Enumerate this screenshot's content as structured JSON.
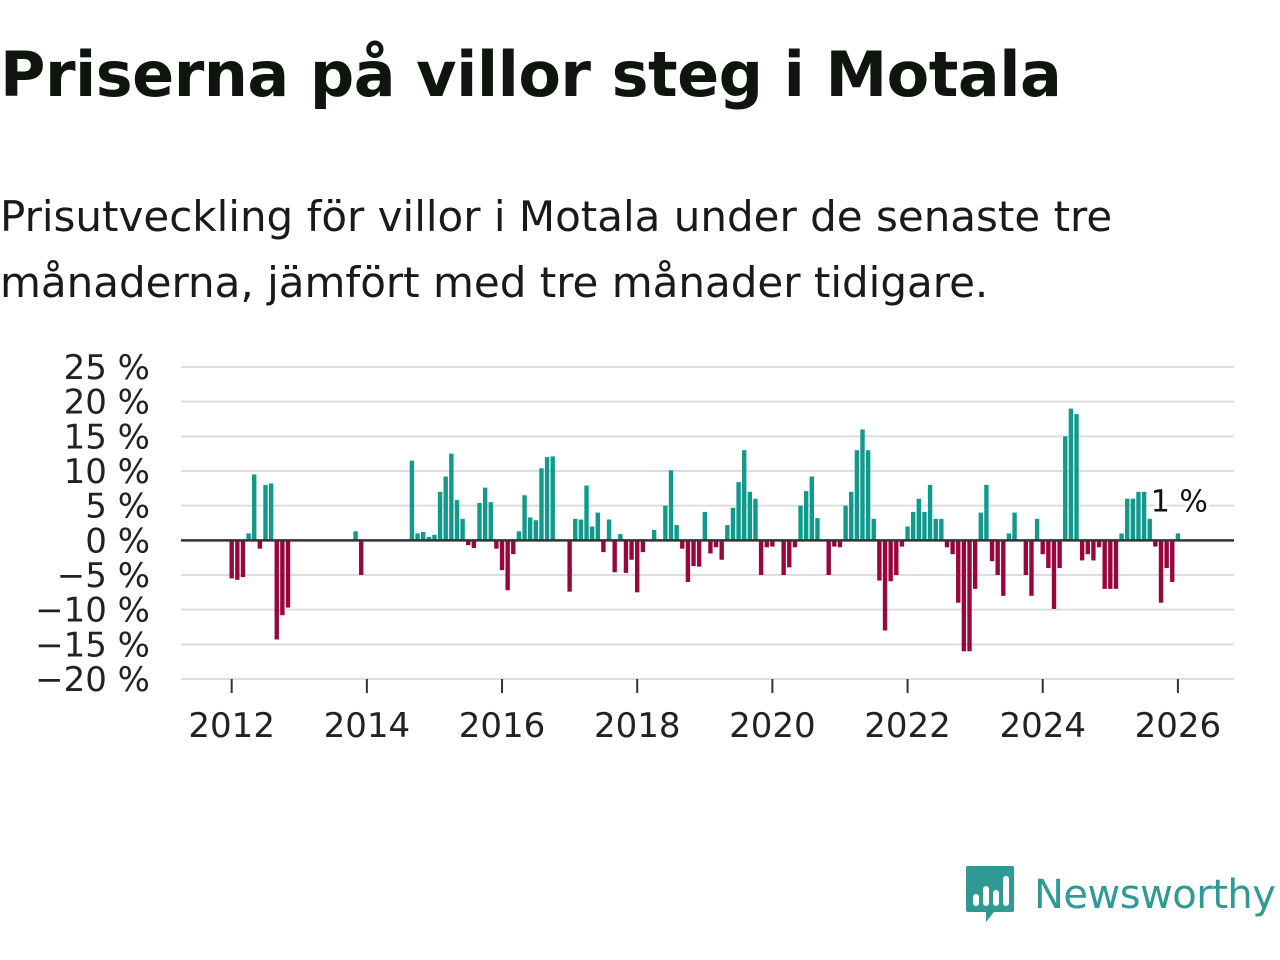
{
  "title": "Priserna på villor steg i Motala",
  "subtitle": "Prisutveckling för villor i Motala under de senaste tre månaderna, jämfört med tre månader tidigare.",
  "brand": {
    "name": "Newsworthy",
    "color": "#2e9a93",
    "icon": "newsworthy-logo-icon"
  },
  "colors": {
    "positive": "#0f9a8c",
    "negative": "#99063b",
    "grid": "#dddddd",
    "zero_line": "#333333",
    "text": "#222222"
  },
  "chart_data": {
    "type": "bar",
    "title": "Priserna på villor steg i Motala",
    "xlabel": "",
    "ylabel": "",
    "ylim": [
      -20,
      25
    ],
    "y_ticks": [
      25,
      20,
      15,
      10,
      5,
      0,
      -5,
      -10,
      -15,
      -20
    ],
    "y_tick_labels": [
      "25 %",
      "20 %",
      "15 %",
      "10 %",
      "5 %",
      "0 %",
      "−5 %",
      "−10 %",
      "−15 %",
      "−20 %"
    ],
    "x_range": [
      2011.25,
      2026.83
    ],
    "x_ticks": [
      2012,
      2014,
      2016,
      2018,
      2020,
      2022,
      2024,
      2026
    ],
    "x_tick_labels": [
      "2012",
      "2014",
      "2016",
      "2018",
      "2020",
      "2022",
      "2024",
      "2026"
    ],
    "grid": true,
    "last_value_label": "1 %",
    "series": [
      {
        "name": "Prisutveckling",
        "start": "2012-01",
        "values": [
          -5.5,
          -5.7,
          -5.3,
          1.0,
          9.5,
          -1.2,
          8.0,
          8.2,
          -14.3,
          -10.8,
          -9.7,
          0,
          0,
          0,
          0,
          0,
          0,
          0,
          0,
          0,
          0,
          0,
          1.3,
          -5.0,
          0,
          0,
          0,
          0,
          0,
          0,
          0,
          0,
          11.5,
          1.0,
          1.2,
          0.5,
          0.8,
          7.0,
          9.2,
          12.5,
          5.8,
          3.1,
          -0.7,
          -1.1,
          5.4,
          7.6,
          5.5,
          -1.2,
          -4.3,
          -7.2,
          -2.0,
          1.3,
          6.5,
          3.3,
          2.9,
          10.4,
          12.0,
          12.1,
          0,
          0,
          -7.4,
          3.1,
          3.0,
          7.9,
          2.0,
          4.0,
          -1.7,
          3.0,
          -4.6,
          0.9,
          -4.7,
          -2.8,
          -7.5,
          -1.7,
          0,
          1.5,
          0,
          5.0,
          10.1,
          2.2,
          -1.2,
          -6.0,
          -3.7,
          -3.8,
          4.1,
          -1.9,
          -1.0,
          -2.8,
          2.2,
          4.7,
          8.4,
          13.0,
          7.0,
          6.0,
          -5.0,
          -1.0,
          -0.9,
          0,
          -5.0,
          -3.9,
          -1.0,
          5.0,
          7.1,
          9.2,
          3.2,
          0,
          -5.0,
          -0.9,
          -1.0,
          5.0,
          7.0,
          13.0,
          16.0,
          13.0,
          3.1,
          -5.8,
          -13.0,
          -5.9,
          -5.0,
          -0.9,
          2.0,
          4.1,
          6.0,
          4.1,
          8.0,
          3.1,
          3.1,
          -1.0,
          -2.0,
          -9.0,
          -16.0,
          -16.0,
          -7.0,
          4.0,
          8.0,
          -3.0,
          -5.0,
          -8.0,
          1.0,
          4.0,
          0,
          -5.0,
          -8.0,
          3.1,
          -2.0,
          -4.0,
          -9.9,
          -4.0,
          15.0,
          19.0,
          18.2,
          -2.9,
          -2.0,
          -2.9,
          -1.0,
          -7.0,
          -7.0,
          -7.0,
          1.0,
          6.0,
          6.0,
          7.0,
          7.0,
          3.1,
          -0.9,
          -9.0,
          -4.0,
          -6.0,
          1.0
        ]
      }
    ]
  }
}
